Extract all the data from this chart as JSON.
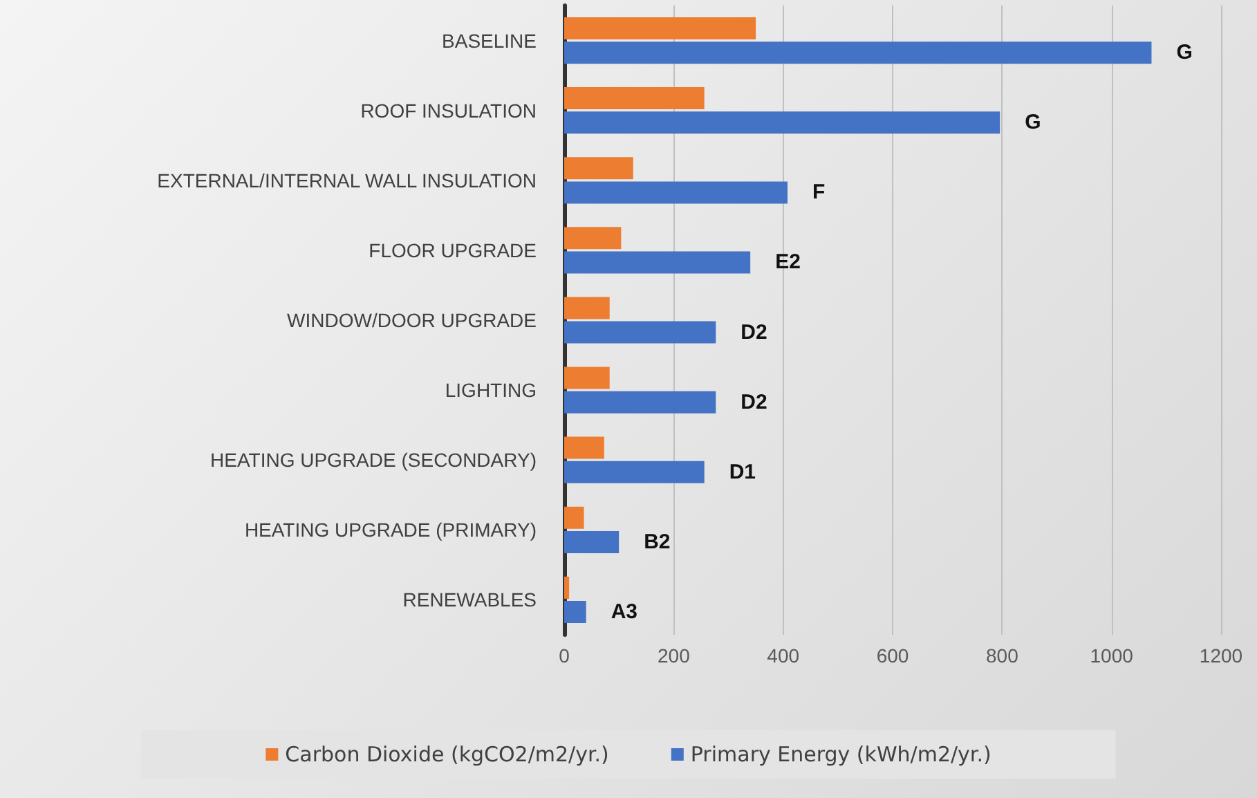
{
  "chart_data": {
    "type": "bar",
    "orientation": "horizontal",
    "categories": [
      "BASELINE",
      "ROOF INSULATION",
      "EXTERNAL/INTERNAL WALL INSULATION",
      "FLOOR UPGRADE",
      "WINDOW/DOOR UPGRADE",
      "LIGHTING",
      "HEATING UPGRADE (SECONDARY)",
      "HEATING UPGRADE (PRIMARY)",
      "RENEWABLES"
    ],
    "series": [
      {
        "name": "Carbon Dioxide (kgCO2/m2/yr.)",
        "color": "#ed7d31",
        "values": [
          350,
          256,
          126,
          104,
          83,
          83,
          73,
          36,
          9
        ]
      },
      {
        "name": "Primary Energy (kWh/m2/yr.)",
        "color": "#4472c4",
        "values": [
          1073,
          796,
          408,
          340,
          277,
          277,
          256,
          100,
          40
        ],
        "value_labels": [
          "G",
          "G",
          "F",
          "E2",
          "D2",
          "D2",
          "D1",
          "B2",
          "A3"
        ]
      }
    ],
    "xlim": [
      0,
      1200
    ],
    "xticks": [
      0,
      200,
      400,
      600,
      800,
      1000,
      1200
    ],
    "grid": "x",
    "legend": "bottom"
  }
}
